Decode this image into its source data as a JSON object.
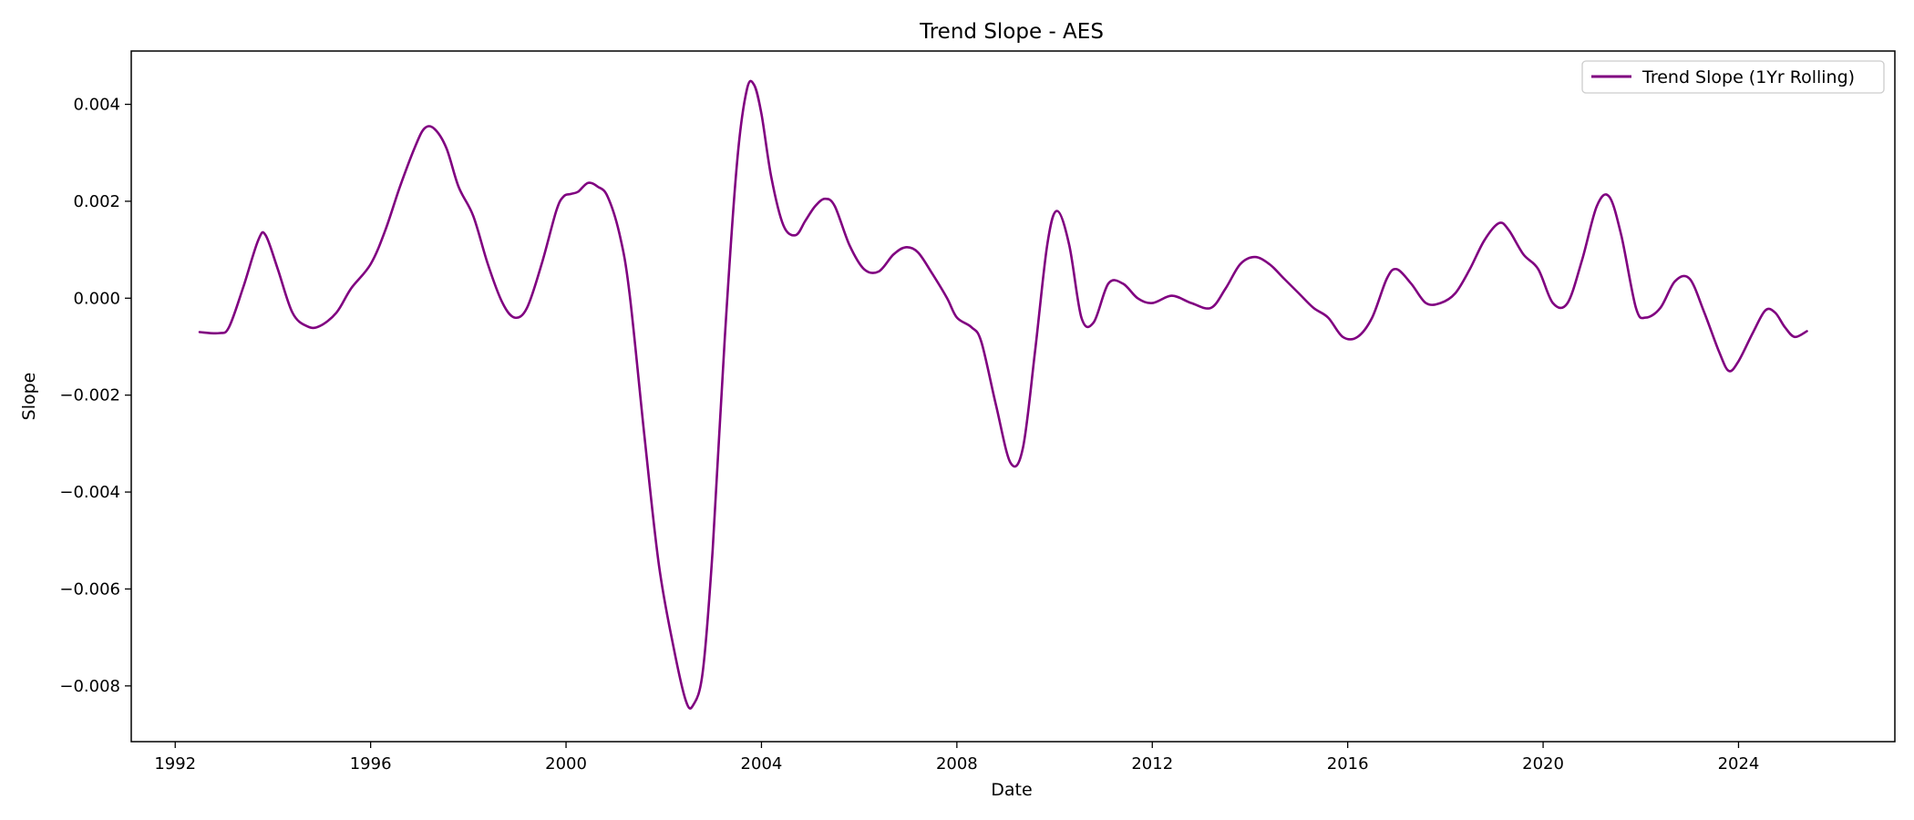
{
  "chart_data": {
    "type": "line",
    "title": "Trend Slope - AES",
    "xlabel": "Date",
    "ylabel": "Slope",
    "xlim": [
      1991.1,
      2027.2
    ],
    "ylim": [
      -0.00915,
      0.0051
    ],
    "xticks": [
      1992,
      1996,
      2000,
      2004,
      2008,
      2012,
      2016,
      2020,
      2024
    ],
    "xtick_labels": [
      "1992",
      "1996",
      "2000",
      "2004",
      "2008",
      "2012",
      "2016",
      "2020",
      "2024"
    ],
    "yticks": [
      0.004,
      0.002,
      0.0,
      -0.002,
      -0.004,
      -0.006,
      -0.008
    ],
    "ytick_labels": [
      "0.004",
      "0.002",
      "0.000",
      "−0.002",
      "−0.004",
      "−0.006",
      "−0.008"
    ],
    "grid": false,
    "legend_position": "top-right",
    "series": [
      {
        "name": "Trend Slope (1Yr Rolling)",
        "color": "#800080",
        "x": [
          1992.5,
          1992.9,
          1993.1,
          1993.4,
          1993.7,
          1993.85,
          1994.1,
          1994.4,
          1994.7,
          1994.95,
          1995.3,
          1995.6,
          1996.0,
          1996.3,
          1996.6,
          1996.9,
          1997.1,
          1997.3,
          1997.55,
          1997.8,
          1998.1,
          1998.4,
          1998.7,
          1998.95,
          1999.2,
          1999.5,
          1999.8,
          1999.95,
          2000.1,
          2000.25,
          2000.45,
          2000.65,
          2000.85,
          2001.1,
          2001.3,
          2001.6,
          2001.9,
          2002.2,
          2002.45,
          2002.6,
          2002.8,
          2003.0,
          2003.25,
          2003.5,
          2003.7,
          2003.85,
          2004.0,
          2004.2,
          2004.45,
          2004.7,
          2004.9,
          2005.1,
          2005.3,
          2005.5,
          2005.8,
          2006.1,
          2006.4,
          2006.7,
          2006.95,
          2007.2,
          2007.5,
          2007.8,
          2008.0,
          2008.3,
          2008.5,
          2008.8,
          2009.1,
          2009.35,
          2009.6,
          2009.85,
          2010.05,
          2010.3,
          2010.55,
          2010.8,
          2011.1,
          2011.4,
          2011.7,
          2012.0,
          2012.4,
          2012.8,
          2013.2,
          2013.5,
          2013.8,
          2014.1,
          2014.4,
          2014.7,
          2015.0,
          2015.3,
          2015.6,
          2015.9,
          2016.2,
          2016.5,
          2016.8,
          2017.0,
          2017.3,
          2017.6,
          2017.9,
          2018.2,
          2018.5,
          2018.8,
          2019.1,
          2019.3,
          2019.6,
          2019.9,
          2020.2,
          2020.5,
          2020.8,
          2021.1,
          2021.35,
          2021.6,
          2021.9,
          2022.1,
          2022.4,
          2022.7,
          2023.0,
          2023.3,
          2023.6,
          2023.8,
          2024.0,
          2024.3,
          2024.55,
          2024.75,
          2024.95,
          2025.15,
          2025.4
        ],
        "y": [
          -0.0007,
          -0.00072,
          -0.0006,
          0.00025,
          0.0012,
          0.0013,
          0.0006,
          -0.0003,
          -0.00058,
          -0.00058,
          -0.0003,
          0.0002,
          0.0007,
          0.0014,
          0.0023,
          0.0031,
          0.0035,
          0.0035,
          0.0031,
          0.0023,
          0.0017,
          0.0007,
          -0.0001,
          -0.0004,
          -0.0002,
          0.0007,
          0.0018,
          0.0021,
          0.00215,
          0.0022,
          0.00238,
          0.0023,
          0.0021,
          0.0013,
          0.0001,
          -0.0028,
          -0.0055,
          -0.0072,
          -0.0083,
          -0.0084,
          -0.0077,
          -0.0052,
          -0.0008,
          0.0028,
          0.0043,
          0.0044,
          0.0038,
          0.0025,
          0.0015,
          0.0013,
          0.0016,
          0.0019,
          0.00205,
          0.0019,
          0.0011,
          0.0006,
          0.00055,
          0.0009,
          0.00105,
          0.00095,
          0.0005,
          0.0,
          -0.0004,
          -0.0006,
          -0.0009,
          -0.0022,
          -0.0034,
          -0.0031,
          -0.0011,
          0.0011,
          0.0018,
          0.0011,
          -0.0004,
          -0.0005,
          0.0003,
          0.0003,
          0.0,
          -0.0001,
          5e-05,
          -0.0001,
          -0.0002,
          0.0002,
          0.0007,
          0.00085,
          0.0007,
          0.0004,
          0.0001,
          -0.0002,
          -0.0004,
          -0.0008,
          -0.0008,
          -0.0004,
          0.0004,
          0.0006,
          0.0003,
          -0.0001,
          -0.0001,
          0.0001,
          0.0006,
          0.0012,
          0.00155,
          0.0014,
          0.0009,
          0.0006,
          -0.0001,
          -0.0001,
          0.0008,
          0.0019,
          0.0021,
          0.0013,
          -0.0002,
          -0.0004,
          -0.0002,
          0.00035,
          0.0004,
          -0.0003,
          -0.0011,
          -0.0015,
          -0.0013,
          -0.0007,
          -0.00025,
          -0.0003,
          -0.0006,
          -0.0008,
          -0.00068
        ]
      }
    ]
  }
}
